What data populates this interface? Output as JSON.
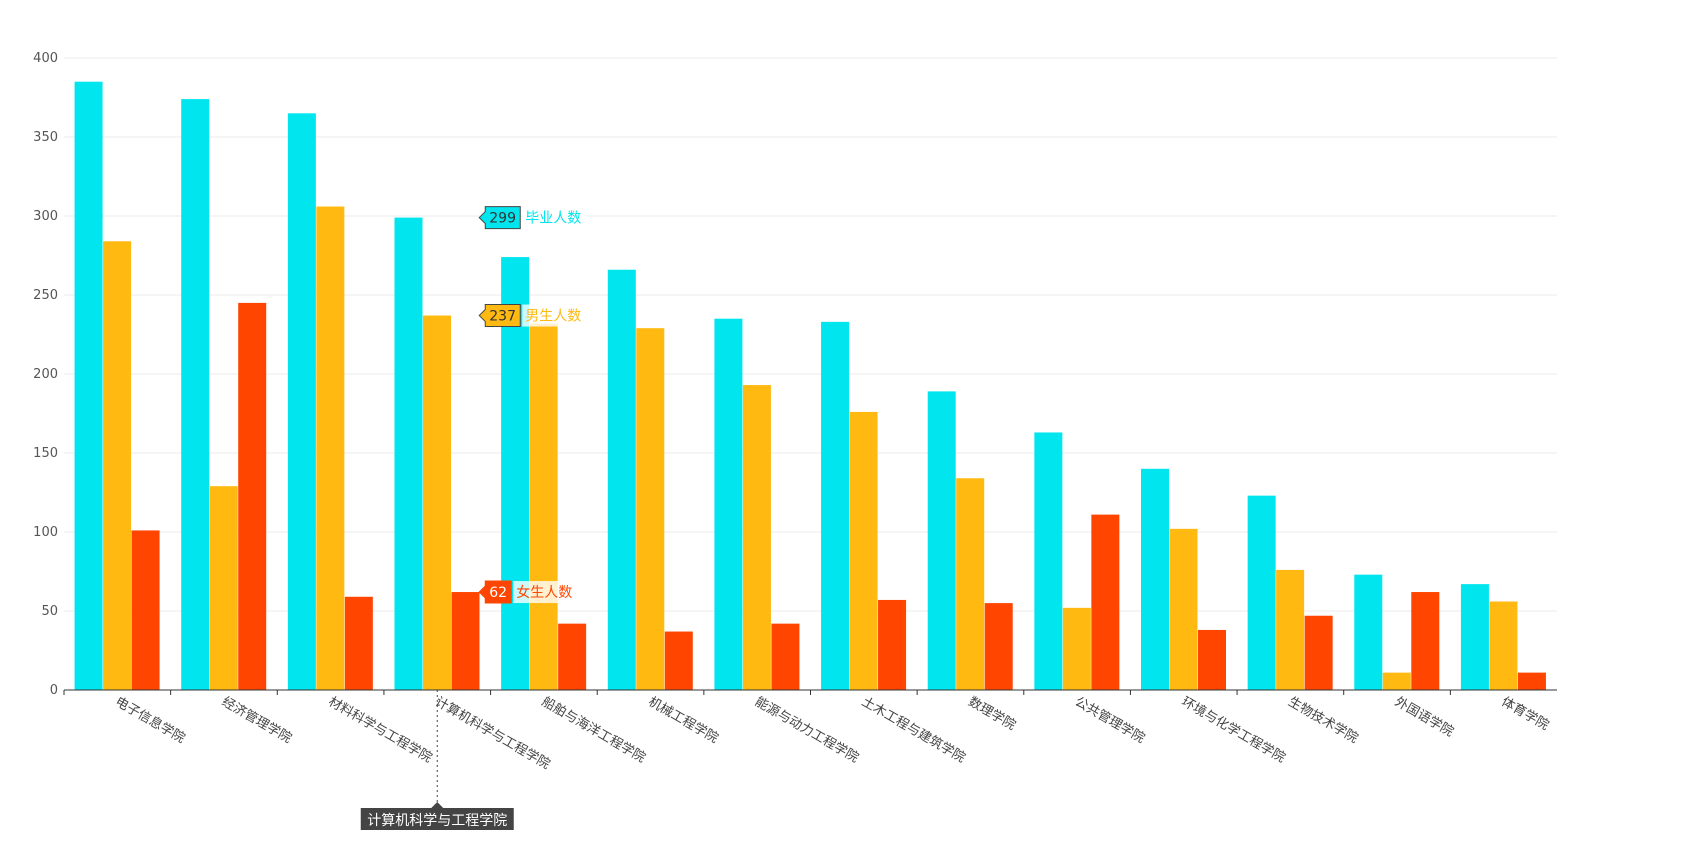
{
  "chart_data": {
    "type": "bar",
    "title": "",
    "xlabel": "",
    "ylabel": "",
    "ylim": [
      0,
      400
    ],
    "yticks": [
      0,
      50,
      100,
      150,
      200,
      250,
      300,
      350,
      400
    ],
    "grid": true,
    "categories": [
      "电子信息学院",
      "经济管理学院",
      "材料科学与工程学院",
      "计算机科学与工程学院",
      "船舶与海洋工程学院",
      "机械工程学院",
      "能源与动力工程学院",
      "土木工程与建筑学院",
      "数理学院",
      "公共管理学院",
      "环境与化学工程学院",
      "生物技术学院",
      "外国语学院",
      "体育学院"
    ],
    "series": [
      {
        "name": "毕业人数",
        "color": "#00e5ee",
        "values": [
          385,
          374,
          365,
          299,
          274,
          266,
          235,
          233,
          189,
          163,
          140,
          123,
          73,
          67
        ]
      },
      {
        "name": "男生人数",
        "color": "#ffb911",
        "values": [
          284,
          129,
          306,
          237,
          232,
          229,
          193,
          176,
          134,
          52,
          102,
          76,
          11,
          56
        ]
      },
      {
        "name": "女生人数",
        "color": "#ff4500",
        "values": [
          101,
          245,
          59,
          62,
          42,
          37,
          42,
          57,
          55,
          111,
          38,
          47,
          62,
          11
        ]
      }
    ],
    "tooltip": {
      "category_index": 3,
      "category": "计算机科学与工程学院",
      "items": [
        {
          "name": "毕业人数",
          "value": "299"
        },
        {
          "name": "男生人数",
          "value": "237"
        },
        {
          "name": "女生人数",
          "value": "62"
        }
      ]
    }
  }
}
